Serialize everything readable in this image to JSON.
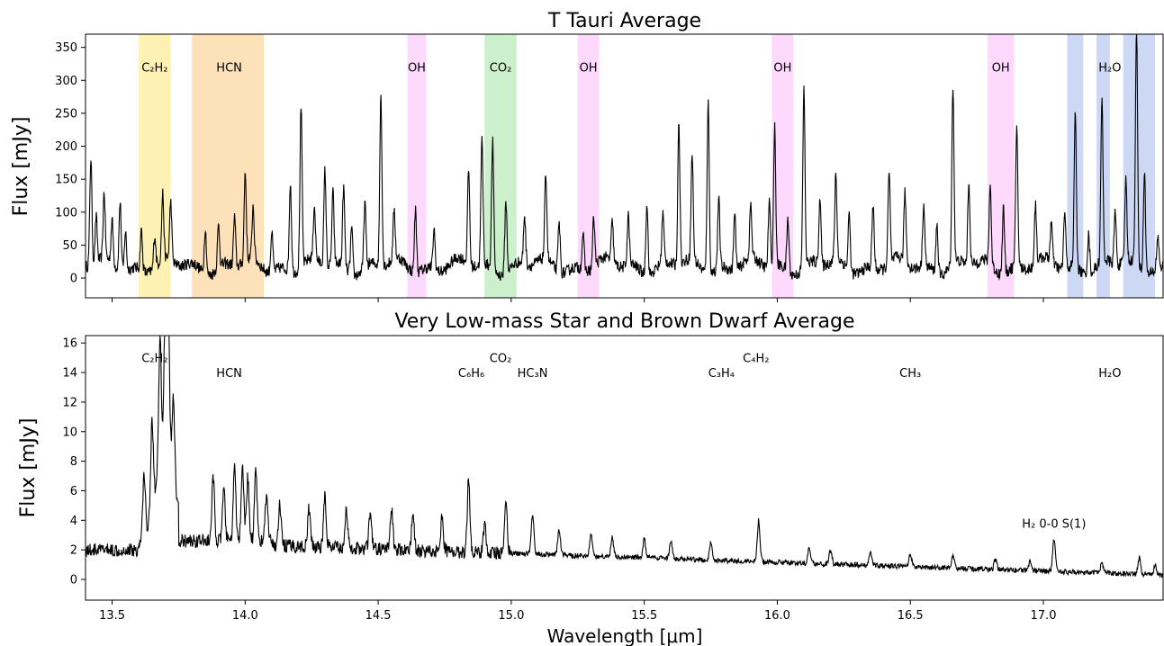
{
  "chart_data": [
    {
      "type": "line",
      "title": "T Tauri Average",
      "ylabel": "Flux [mJy]",
      "xlabel": "",
      "xlim": [
        13.4,
        17.45
      ],
      "ylim": [
        -30,
        370
      ],
      "yticks": [
        0,
        50,
        100,
        150,
        200,
        250,
        300,
        350
      ],
      "xticks": [
        13.5,
        14.0,
        14.5,
        15.0,
        15.5,
        16.0,
        16.5,
        17.0
      ],
      "show_xtick_labels": false,
      "bands": [
        {
          "x0": 13.6,
          "x1": 13.72,
          "color": "#fdf2b4"
        },
        {
          "x0": 13.8,
          "x1": 14.07,
          "color": "#fde2b9"
        },
        {
          "x0": 14.61,
          "x1": 14.68,
          "color": "#fdd9fd"
        },
        {
          "x0": 14.9,
          "x1": 15.02,
          "color": "#ccf0cc"
        },
        {
          "x0": 15.25,
          "x1": 15.33,
          "color": "#fdd9fd"
        },
        {
          "x0": 15.98,
          "x1": 16.06,
          "color": "#fdd9fd"
        },
        {
          "x0": 16.79,
          "x1": 16.89,
          "color": "#fdd9fd"
        },
        {
          "x0": 17.09,
          "x1": 17.15,
          "color": "#cdd8f4"
        },
        {
          "x0": 17.2,
          "x1": 17.25,
          "color": "#cdd8f4"
        },
        {
          "x0": 17.3,
          "x1": 17.42,
          "color": "#cdd8f4"
        }
      ],
      "labels": [
        {
          "text": "C₂H₂",
          "x": 13.66,
          "y": 320
        },
        {
          "text": "HCN",
          "x": 13.94,
          "y": 320
        },
        {
          "text": "OH",
          "x": 14.645,
          "y": 320
        },
        {
          "text": "CO₂",
          "x": 14.96,
          "y": 320
        },
        {
          "text": "OH",
          "x": 15.29,
          "y": 320
        },
        {
          "text": "OH",
          "x": 16.02,
          "y": 320
        },
        {
          "text": "OH",
          "x": 16.84,
          "y": 320
        },
        {
          "text": "H₂O",
          "x": 17.25,
          "y": 320
        }
      ],
      "peaks": [
        {
          "x": 13.42,
          "y": 165
        },
        {
          "x": 13.44,
          "y": 70
        },
        {
          "x": 13.47,
          "y": 100
        },
        {
          "x": 13.5,
          "y": 65
        },
        {
          "x": 13.53,
          "y": 105
        },
        {
          "x": 13.55,
          "y": 60
        },
        {
          "x": 13.61,
          "y": 60
        },
        {
          "x": 13.66,
          "y": 50
        },
        {
          "x": 13.69,
          "y": 100
        },
        {
          "x": 13.72,
          "y": 90
        },
        {
          "x": 13.85,
          "y": 70
        },
        {
          "x": 13.9,
          "y": 65
        },
        {
          "x": 13.96,
          "y": 75
        },
        {
          "x": 14.0,
          "y": 135
        },
        {
          "x": 14.03,
          "y": 80
        },
        {
          "x": 14.1,
          "y": 60
        },
        {
          "x": 14.17,
          "y": 135
        },
        {
          "x": 14.21,
          "y": 245
        },
        {
          "x": 14.26,
          "y": 80
        },
        {
          "x": 14.3,
          "y": 145
        },
        {
          "x": 14.33,
          "y": 110
        },
        {
          "x": 14.37,
          "y": 120
        },
        {
          "x": 14.4,
          "y": 70
        },
        {
          "x": 14.45,
          "y": 100
        },
        {
          "x": 14.51,
          "y": 260
        },
        {
          "x": 14.56,
          "y": 75
        },
        {
          "x": 14.64,
          "y": 95
        },
        {
          "x": 14.71,
          "y": 60
        },
        {
          "x": 14.84,
          "y": 145
        },
        {
          "x": 14.89,
          "y": 190
        },
        {
          "x": 14.93,
          "y": 195
        },
        {
          "x": 14.98,
          "y": 110
        },
        {
          "x": 15.05,
          "y": 75
        },
        {
          "x": 15.13,
          "y": 130
        },
        {
          "x": 15.18,
          "y": 75
        },
        {
          "x": 15.27,
          "y": 55
        },
        {
          "x": 15.31,
          "y": 75
        },
        {
          "x": 15.38,
          "y": 60
        },
        {
          "x": 15.44,
          "y": 75
        },
        {
          "x": 15.51,
          "y": 110
        },
        {
          "x": 15.57,
          "y": 75
        },
        {
          "x": 15.63,
          "y": 220
        },
        {
          "x": 15.68,
          "y": 160
        },
        {
          "x": 15.74,
          "y": 260
        },
        {
          "x": 15.78,
          "y": 105
        },
        {
          "x": 15.84,
          "y": 85
        },
        {
          "x": 15.9,
          "y": 80
        },
        {
          "x": 15.97,
          "y": 100
        },
        {
          "x": 15.99,
          "y": 210
        },
        {
          "x": 16.04,
          "y": 80
        },
        {
          "x": 16.1,
          "y": 270
        },
        {
          "x": 16.16,
          "y": 100
        },
        {
          "x": 16.22,
          "y": 130
        },
        {
          "x": 16.27,
          "y": 85
        },
        {
          "x": 16.36,
          "y": 95
        },
        {
          "x": 16.42,
          "y": 140
        },
        {
          "x": 16.48,
          "y": 105
        },
        {
          "x": 16.55,
          "y": 95
        },
        {
          "x": 16.6,
          "y": 75
        },
        {
          "x": 16.66,
          "y": 270
        },
        {
          "x": 16.72,
          "y": 125
        },
        {
          "x": 16.8,
          "y": 120
        },
        {
          "x": 16.85,
          "y": 100
        },
        {
          "x": 16.9,
          "y": 215
        },
        {
          "x": 16.97,
          "y": 90
        },
        {
          "x": 17.03,
          "y": 60
        },
        {
          "x": 17.08,
          "y": 85
        },
        {
          "x": 17.12,
          "y": 240
        },
        {
          "x": 17.17,
          "y": 60
        },
        {
          "x": 17.22,
          "y": 245
        },
        {
          "x": 17.27,
          "y": 80
        },
        {
          "x": 17.31,
          "y": 125
        },
        {
          "x": 17.35,
          "y": 365
        },
        {
          "x": 17.38,
          "y": 155
        },
        {
          "x": 17.43,
          "y": 50
        }
      ]
    },
    {
      "type": "line",
      "title": "Very Low-mass Star and Brown Dwarf Average",
      "ylabel": "Flux [mJy]",
      "xlabel": "Wavelength [μm]",
      "xlim": [
        13.4,
        17.45
      ],
      "ylim": [
        -1.4,
        16.5
      ],
      "yticks": [
        0,
        2,
        4,
        6,
        8,
        10,
        12,
        14,
        16
      ],
      "xticks": [
        13.5,
        14.0,
        14.5,
        15.0,
        15.5,
        16.0,
        16.5,
        17.0
      ],
      "xticklabels": [
        "13.5",
        "14.0",
        "14.5",
        "15.0",
        "15.5",
        "16.0",
        "16.5",
        "17.0"
      ],
      "labels": [
        {
          "text": "C₂H₂",
          "x": 13.66,
          "y": 15.0
        },
        {
          "text": "HCN",
          "x": 13.94,
          "y": 14.0
        },
        {
          "text": "CO₂",
          "x": 14.96,
          "y": 15.0
        },
        {
          "text": "C₆H₆",
          "x": 14.85,
          "y": 14.0
        },
        {
          "text": "HC₃N",
          "x": 15.08,
          "y": 14.0
        },
        {
          "text": "C₄H₂",
          "x": 15.92,
          "y": 15.0
        },
        {
          "text": "C₃H₄",
          "x": 15.79,
          "y": 14.0
        },
        {
          "text": "CH₃",
          "x": 16.5,
          "y": 14.0
        },
        {
          "text": "H₂O",
          "x": 17.25,
          "y": 14.0
        },
        {
          "text": "H₂ 0-0 S(1)",
          "x": 17.04,
          "y": 3.8
        }
      ],
      "peaks": [
        {
          "x": 13.68,
          "y": 10.5
        },
        {
          "x": 13.7,
          "y": 13.0
        },
        {
          "x": 13.71,
          "y": 14.3
        },
        {
          "x": 13.73,
          "y": 6.8
        },
        {
          "x": 13.65,
          "y": 7.0
        },
        {
          "x": 13.62,
          "y": 5.0
        },
        {
          "x": 13.88,
          "y": 5.0
        },
        {
          "x": 13.92,
          "y": 4.0
        },
        {
          "x": 13.96,
          "y": 5.7
        },
        {
          "x": 13.99,
          "y": 5.6
        },
        {
          "x": 14.01,
          "y": 5.0
        },
        {
          "x": 14.04,
          "y": 5.8
        },
        {
          "x": 14.08,
          "y": 3.5
        },
        {
          "x": 14.13,
          "y": 3.2
        },
        {
          "x": 14.24,
          "y": 3.0
        },
        {
          "x": 14.3,
          "y": 4.0
        },
        {
          "x": 14.38,
          "y": 3.0
        },
        {
          "x": 14.47,
          "y": 2.9
        },
        {
          "x": 14.55,
          "y": 3.2
        },
        {
          "x": 14.63,
          "y": 2.8
        },
        {
          "x": 14.74,
          "y": 2.7
        },
        {
          "x": 14.84,
          "y": 5.8
        },
        {
          "x": 14.9,
          "y": 2.3
        },
        {
          "x": 14.98,
          "y": 4.3
        },
        {
          "x": 15.08,
          "y": 3.2
        },
        {
          "x": 15.18,
          "y": 2.0
        },
        {
          "x": 15.3,
          "y": 1.7
        },
        {
          "x": 15.38,
          "y": 1.5
        },
        {
          "x": 15.5,
          "y": 1.5
        },
        {
          "x": 15.6,
          "y": 1.3
        },
        {
          "x": 15.75,
          "y": 1.5
        },
        {
          "x": 15.93,
          "y": 3.3
        },
        {
          "x": 16.12,
          "y": 1.2
        },
        {
          "x": 16.2,
          "y": 1.1
        },
        {
          "x": 16.35,
          "y": 1.0
        },
        {
          "x": 16.5,
          "y": 1.0
        },
        {
          "x": 16.66,
          "y": 1.0
        },
        {
          "x": 16.82,
          "y": 0.8
        },
        {
          "x": 16.95,
          "y": 0.8
        },
        {
          "x": 17.04,
          "y": 2.6
        },
        {
          "x": 17.22,
          "y": 0.9
        },
        {
          "x": 17.36,
          "y": 1.3
        },
        {
          "x": 17.42,
          "y": 0.8
        }
      ]
    }
  ]
}
